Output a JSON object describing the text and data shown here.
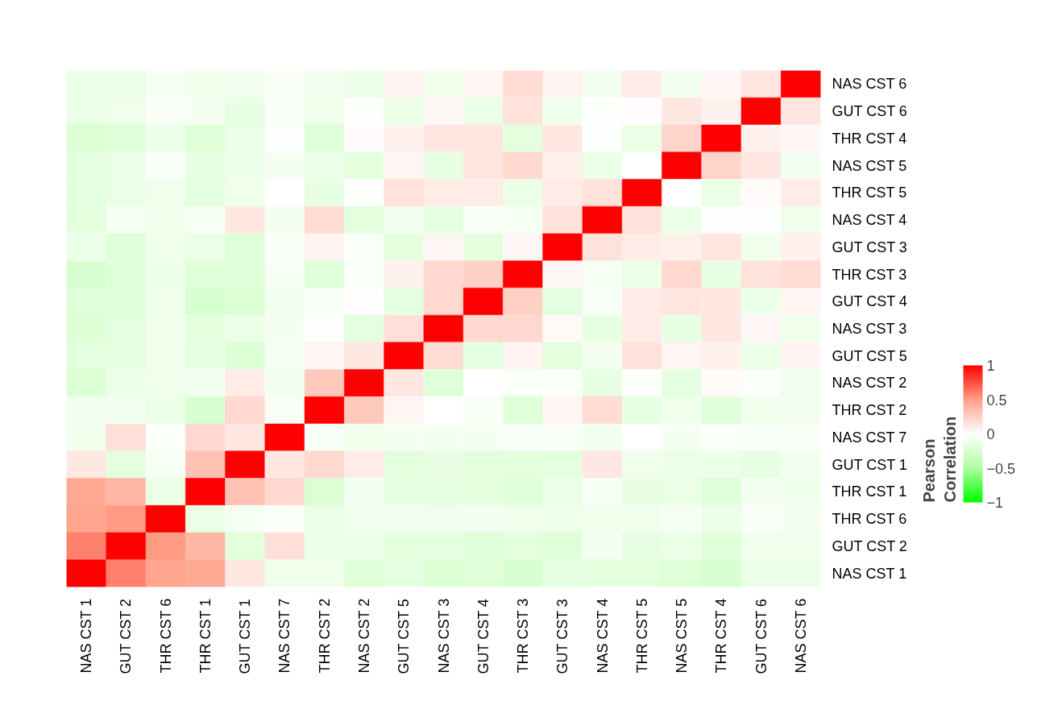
{
  "chart_data": {
    "type": "heatmap",
    "clabel": "Pearson Correlation",
    "categories": [
      "NAS CST 1",
      "GUT CST 2",
      "THR CST 6",
      "THR CST 1",
      "GUT CST 1",
      "NAS CST 7",
      "THR CST 2",
      "NAS CST 2",
      "GUT CST 5",
      "NAS CST 3",
      "GUT CST 4",
      "THR CST 3",
      "GUT CST 3",
      "NAS CST 4",
      "THR CST 5",
      "NAS CST 5",
      "THR CST 4",
      "GUT CST 6",
      "NAS CST 6"
    ],
    "y_categories": [
      "NAS CST 6",
      "GUT CST 6",
      "THR CST 4",
      "NAS CST 5",
      "THR CST 5",
      "NAS CST 4",
      "GUT CST 3",
      "THR CST 3",
      "GUT CST 4",
      "NAS CST 3",
      "GUT CST 5",
      "NAS CST 2",
      "THR CST 2",
      "NAS CST 7",
      "GUT CST 1",
      "THR CST 1",
      "THR CST 6",
      "GUT CST 2",
      "NAS CST 1"
    ],
    "cells": [
      [
        -0.12,
        -0.12,
        -0.06,
        -0.1,
        -0.08,
        -0.04,
        -0.08,
        -0.12,
        0.06,
        -0.1,
        0.05,
        0.18,
        0.06,
        -0.08,
        0.1,
        -0.08,
        0.04,
        0.13,
        1
      ],
      [
        -0.13,
        -0.1,
        -0.04,
        -0.07,
        -0.15,
        -0.05,
        -0.1,
        -0.02,
        -0.12,
        0.04,
        -0.12,
        0.15,
        -0.1,
        -0.02,
        0.01,
        0.12,
        0.07,
        1,
        0.13
      ],
      [
        -0.22,
        -0.2,
        -0.12,
        -0.2,
        -0.12,
        -0.02,
        -0.2,
        0.02,
        0.07,
        0.13,
        0.13,
        -0.18,
        0.12,
        -0.01,
        -0.13,
        0.22,
        1,
        0.07,
        0.04
      ],
      [
        -0.17,
        -0.13,
        -0.05,
        -0.15,
        -0.12,
        -0.07,
        -0.12,
        -0.18,
        0.05,
        -0.15,
        0.13,
        0.2,
        0.08,
        -0.12,
        0,
        1,
        0.22,
        0.12,
        -0.08
      ],
      [
        -0.17,
        -0.13,
        -0.1,
        -0.18,
        -0.1,
        0,
        -0.15,
        -0.01,
        0.15,
        0.1,
        0.1,
        -0.13,
        0.1,
        0.15,
        1,
        0,
        -0.13,
        0.02,
        0.1
      ],
      [
        -0.18,
        -0.06,
        -0.1,
        -0.06,
        0.12,
        -0.07,
        0.18,
        -0.18,
        -0.08,
        -0.15,
        -0.05,
        -0.06,
        0.15,
        1,
        0.15,
        -0.12,
        -0.02,
        -0.02,
        -0.1
      ],
      [
        -0.12,
        -0.2,
        -0.1,
        -0.13,
        -0.2,
        -0.04,
        0.06,
        -0.03,
        -0.18,
        0.04,
        -0.18,
        0.04,
        1,
        0.15,
        0.1,
        0.08,
        0.13,
        -0.1,
        0.07
      ],
      [
        -0.25,
        -0.2,
        -0.12,
        -0.2,
        -0.2,
        -0.06,
        -0.2,
        -0.03,
        0.07,
        0.2,
        0.25,
        1,
        0.04,
        -0.06,
        -0.13,
        0.2,
        -0.15,
        0.15,
        0.18
      ],
      [
        -0.2,
        -0.2,
        -0.1,
        -0.25,
        -0.23,
        -0.08,
        -0.05,
        0.01,
        -0.17,
        0.2,
        1,
        0.25,
        -0.17,
        -0.05,
        0.1,
        0.13,
        0.12,
        -0.12,
        0.05
      ],
      [
        -0.22,
        -0.17,
        -0.1,
        -0.18,
        -0.13,
        -0.07,
        -0.01,
        -0.17,
        0.17,
        1,
        0.2,
        0.2,
        0.03,
        -0.15,
        0.1,
        -0.15,
        0.12,
        0.04,
        -0.1
      ],
      [
        -0.17,
        -0.17,
        -0.1,
        -0.15,
        -0.22,
        -0.06,
        0.05,
        0.12,
        1,
        0.18,
        -0.17,
        0.06,
        -0.18,
        -0.07,
        0.15,
        0.05,
        0.07,
        -0.12,
        0.06
      ],
      [
        -0.22,
        -0.12,
        -0.1,
        -0.08,
        0.1,
        -0.08,
        0.28,
        1,
        0.12,
        -0.2,
        0,
        -0.03,
        -0.03,
        -0.15,
        -0.02,
        -0.17,
        0.02,
        -0.03,
        -0.1
      ],
      [
        -0.08,
        -0.08,
        -0.12,
        -0.25,
        0.2,
        -0.04,
        1,
        0.28,
        0.05,
        0,
        -0.05,
        -0.2,
        0.05,
        0.18,
        -0.15,
        -0.1,
        -0.2,
        -0.1,
        -0.08
      ],
      [
        -0.1,
        0.17,
        -0.03,
        0.2,
        0.12,
        1,
        -0.05,
        -0.1,
        -0.07,
        -0.07,
        -0.07,
        -0.05,
        -0.04,
        -0.08,
        0,
        -0.07,
        -0.03,
        -0.05,
        -0.04
      ],
      [
        0.12,
        -0.18,
        -0.06,
        0.32,
        1,
        0.12,
        0.2,
        0.1,
        -0.18,
        -0.14,
        -0.18,
        -0.18,
        -0.18,
        0.12,
        -0.1,
        -0.12,
        -0.12,
        -0.15,
        -0.08
      ],
      [
        0.45,
        0.38,
        -0.13,
        1,
        0.32,
        0.2,
        -0.23,
        -0.08,
        -0.15,
        -0.17,
        -0.18,
        -0.2,
        -0.13,
        -0.06,
        -0.14,
        -0.13,
        -0.2,
        -0.07,
        -0.11
      ],
      [
        0.48,
        0.52,
        1,
        -0.13,
        -0.06,
        -0.03,
        -0.13,
        -0.09,
        -0.09,
        -0.09,
        -0.08,
        -0.1,
        -0.11,
        -0.1,
        -0.1,
        -0.06,
        -0.12,
        -0.04,
        -0.07
      ],
      [
        0.6,
        1,
        0.52,
        0.38,
        -0.18,
        0.17,
        -0.12,
        -0.12,
        -0.18,
        -0.17,
        -0.2,
        -0.18,
        -0.2,
        -0.07,
        -0.15,
        -0.13,
        -0.2,
        -0.1,
        -0.1
      ],
      [
        1,
        0.6,
        0.48,
        0.45,
        0.12,
        -0.1,
        -0.1,
        -0.2,
        -0.17,
        -0.22,
        -0.2,
        -0.25,
        -0.15,
        -0.18,
        -0.18,
        -0.2,
        -0.24,
        -0.13,
        -0.13
      ]
    ],
    "clim": [
      -1,
      1
    ],
    "cticks": [
      1,
      0.5,
      0,
      {
        "value": -0.5,
        "label": "−0.5"
      },
      {
        "value": -1,
        "label": "−1"
      }
    ]
  }
}
